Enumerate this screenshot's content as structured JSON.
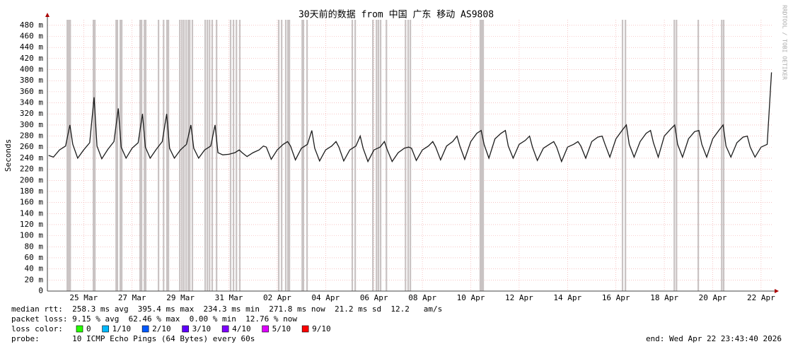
{
  "chart_data": {
    "type": "line",
    "title": "30天前的数据 from 中国 广东 移动 AS9808",
    "y_label": "Seconds",
    "watermark": "RRDTOOL / TOBI OETIKER",
    "color": "#1c1c1c",
    "grid": true,
    "ylim": [
      0,
      0.49
    ],
    "yticks": [
      {
        "value": 0,
        "label": "0"
      },
      {
        "value": 0.02,
        "label": "20 m"
      },
      {
        "value": 0.04,
        "label": "40 m"
      },
      {
        "value": 0.06,
        "label": "60 m"
      },
      {
        "value": 0.08,
        "label": "80 m"
      },
      {
        "value": 0.1,
        "label": "100 m"
      },
      {
        "value": 0.12,
        "label": "120 m"
      },
      {
        "value": 0.14,
        "label": "140 m"
      },
      {
        "value": 0.16,
        "label": "160 m"
      },
      {
        "value": 0.18,
        "label": "180 m"
      },
      {
        "value": 0.2,
        "label": "200 m"
      },
      {
        "value": 0.22,
        "label": "220 m"
      },
      {
        "value": 0.24,
        "label": "240 m"
      },
      {
        "value": 0.26,
        "label": "260 m"
      },
      {
        "value": 0.28,
        "label": "280 m"
      },
      {
        "value": 0.3,
        "label": "300 m"
      },
      {
        "value": 0.32,
        "label": "320 m"
      },
      {
        "value": 0.34,
        "label": "340 m"
      },
      {
        "value": 0.36,
        "label": "360 m"
      },
      {
        "value": 0.38,
        "label": "380 m"
      },
      {
        "value": 0.4,
        "label": "400 m"
      },
      {
        "value": 0.42,
        "label": "420 m"
      },
      {
        "value": 0.44,
        "label": "440 m"
      },
      {
        "value": 0.46,
        "label": "460 m"
      },
      {
        "value": 0.48,
        "label": "480 m"
      }
    ],
    "xlim": [
      0,
      30
    ],
    "xticks": [
      {
        "value": 1.5,
        "label": "25 Mar"
      },
      {
        "value": 3.5,
        "label": "27 Mar"
      },
      {
        "value": 5.5,
        "label": "29 Mar"
      },
      {
        "value": 7.5,
        "label": "31 Mar"
      },
      {
        "value": 9.5,
        "label": "02 Apr"
      },
      {
        "value": 11.5,
        "label": "04 Apr"
      },
      {
        "value": 13.5,
        "label": "06 Apr"
      },
      {
        "value": 15.5,
        "label": "08 Apr"
      },
      {
        "value": 17.5,
        "label": "10 Apr"
      },
      {
        "value": 19.5,
        "label": "12 Apr"
      },
      {
        "value": 21.5,
        "label": "14 Apr"
      },
      {
        "value": 23.5,
        "label": "16 Apr"
      },
      {
        "value": 25.5,
        "label": "18 Apr"
      },
      {
        "value": 27.5,
        "label": "20 Apr"
      },
      {
        "value": 29.5,
        "label": "22 Apr"
      }
    ],
    "x": [
      0.05,
      0.25,
      0.5,
      0.75,
      0.93,
      1.05,
      1.25,
      1.5,
      1.75,
      1.93,
      2.05,
      2.25,
      2.5,
      2.75,
      2.93,
      3.05,
      3.25,
      3.5,
      3.75,
      3.93,
      4.05,
      4.25,
      4.5,
      4.75,
      4.93,
      5.05,
      5.25,
      5.5,
      5.75,
      5.93,
      6.05,
      6.25,
      6.5,
      6.75,
      6.93,
      7.05,
      7.25,
      7.5,
      7.75,
      7.93,
      8.05,
      8.25,
      8.5,
      8.75,
      8.93,
      9.05,
      9.25,
      9.5,
      9.75,
      9.93,
      10.05,
      10.25,
      10.5,
      10.75,
      10.93,
      11.05,
      11.25,
      11.5,
      11.75,
      11.93,
      12.05,
      12.25,
      12.5,
      12.75,
      12.93,
      13.05,
      13.25,
      13.5,
      13.75,
      13.93,
      14.05,
      14.25,
      14.5,
      14.75,
      14.93,
      15.05,
      15.25,
      15.5,
      15.75,
      15.93,
      16.05,
      16.25,
      16.5,
      16.75,
      16.93,
      17.05,
      17.25,
      17.5,
      17.75,
      17.93,
      18.05,
      18.25,
      18.5,
      18.75,
      18.93,
      19.05,
      19.25,
      19.5,
      19.75,
      19.93,
      20.05,
      20.25,
      20.5,
      20.75,
      20.93,
      21.05,
      21.25,
      21.5,
      21.75,
      21.93,
      22.05,
      22.25,
      22.5,
      22.75,
      22.93,
      23.05,
      23.25,
      23.5,
      23.75,
      23.93,
      24.05,
      24.25,
      24.5,
      24.75,
      24.93,
      25.05,
      25.25,
      25.5,
      25.75,
      25.93,
      26.05,
      26.25,
      26.5,
      26.75,
      26.93,
      27.05,
      27.25,
      27.5,
      27.75,
      27.93,
      28.05,
      28.25,
      28.5,
      28.75,
      28.93,
      29.05,
      29.25,
      29.5,
      29.75,
      29.93
    ],
    "values": [
      0.245,
      0.242,
      0.255,
      0.262,
      0.3,
      0.265,
      0.24,
      0.255,
      0.268,
      0.35,
      0.262,
      0.239,
      0.256,
      0.27,
      0.33,
      0.26,
      0.24,
      0.258,
      0.268,
      0.32,
      0.26,
      0.24,
      0.256,
      0.27,
      0.32,
      0.258,
      0.24,
      0.255,
      0.265,
      0.3,
      0.258,
      0.24,
      0.255,
      0.262,
      0.3,
      0.25,
      0.246,
      0.247,
      0.25,
      0.255,
      0.25,
      0.243,
      0.25,
      0.255,
      0.262,
      0.26,
      0.238,
      0.255,
      0.265,
      0.27,
      0.262,
      0.237,
      0.258,
      0.265,
      0.29,
      0.258,
      0.235,
      0.255,
      0.262,
      0.27,
      0.26,
      0.235,
      0.255,
      0.262,
      0.28,
      0.258,
      0.234,
      0.255,
      0.26,
      0.27,
      0.255,
      0.234,
      0.25,
      0.258,
      0.26,
      0.258,
      0.236,
      0.255,
      0.262,
      0.27,
      0.26,
      0.237,
      0.262,
      0.27,
      0.28,
      0.262,
      0.238,
      0.27,
      0.285,
      0.29,
      0.265,
      0.24,
      0.275,
      0.285,
      0.29,
      0.262,
      0.24,
      0.265,
      0.272,
      0.28,
      0.26,
      0.236,
      0.258,
      0.265,
      0.27,
      0.26,
      0.234,
      0.26,
      0.265,
      0.27,
      0.262,
      0.24,
      0.27,
      0.278,
      0.28,
      0.265,
      0.242,
      0.275,
      0.29,
      0.3,
      0.265,
      0.242,
      0.27,
      0.285,
      0.29,
      0.268,
      0.242,
      0.28,
      0.292,
      0.3,
      0.265,
      0.242,
      0.275,
      0.288,
      0.29,
      0.265,
      0.242,
      0.275,
      0.29,
      0.3,
      0.262,
      0.242,
      0.268,
      0.278,
      0.28,
      0.26,
      0.242,
      0.26,
      0.265,
      0.395
    ],
    "loss_bars": {
      "color": "#c9c3c3",
      "x": [
        0.82,
        0.88,
        0.94,
        1.9,
        1.96,
        2.84,
        2.89,
        3.01,
        3.07,
        3.83,
        3.89,
        4.01,
        4.06,
        4.59,
        4.8,
        4.94,
        5.0,
        5.47,
        5.56,
        5.64,
        5.73,
        5.82,
        5.88,
        5.99,
        6.52,
        6.61,
        6.7,
        6.81,
        6.99,
        7.57,
        7.69,
        7.81,
        7.95,
        9.56,
        9.68,
        9.85,
        9.94,
        10.0,
        10.53,
        10.58,
        10.73,
        12.6,
        12.72,
        13.45,
        13.6,
        13.68,
        13.77,
        14.01,
        14.8,
        14.91,
        15.0,
        17.89,
        17.95,
        18.01,
        23.77,
        23.89,
        25.91,
        26.0,
        26.9,
        27.87,
        27.95
      ]
    },
    "stats": [
      "median rtt:  258.3 ms avg  395.4 ms max  234.3 ms min  271.8 ms now  21.2 ms sd  12.2   am/s",
      "packet loss: 9.15 % avg  62.46 % max  0.00 % min  12.76 % now"
    ],
    "loss_color_label": "loss color:",
    "loss_colors": [
      {
        "label": "0",
        "color": "#26ff00"
      },
      {
        "label": "1/10",
        "color": "#00b8ff"
      },
      {
        "label": "2/10",
        "color": "#0059ff"
      },
      {
        "label": "3/10",
        "color": "#5e00ff"
      },
      {
        "label": "4/10",
        "color": "#7e00ff"
      },
      {
        "label": "5/10",
        "color": "#dd00ff"
      },
      {
        "label": "9/10",
        "color": "#ff0000"
      }
    ],
    "probe": "probe:       10 ICMP Echo Pings (64 Bytes) every 60s",
    "end": "end: Wed Apr 22 23:43:40 2026"
  }
}
